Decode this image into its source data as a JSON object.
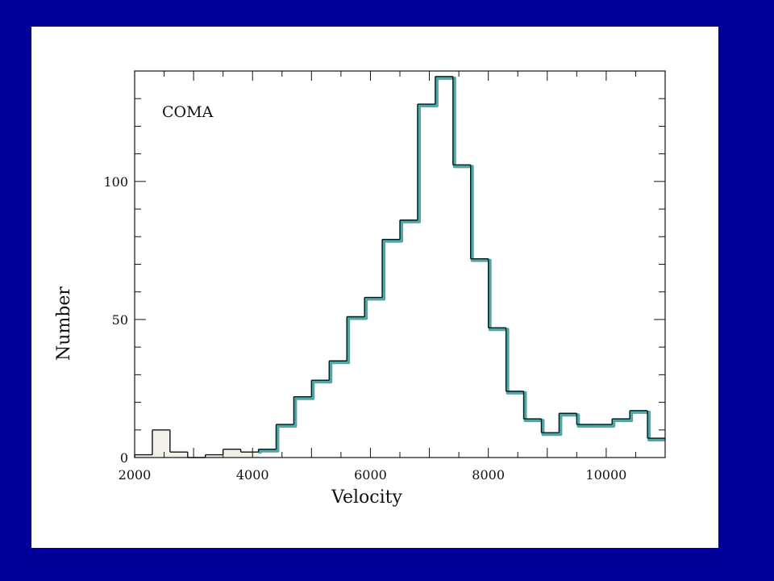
{
  "chart_data": {
    "type": "bar",
    "annotation": "COMA",
    "xlabel": "Velocity",
    "ylabel": "Number",
    "xlim": [
      2000,
      11000
    ],
    "ylim": [
      0,
      140
    ],
    "x_ticks": [
      2000,
      4000,
      6000,
      8000,
      10000
    ],
    "y_ticks": [
      0,
      50,
      100
    ],
    "bin_width": 300,
    "bins": [
      {
        "x0": 2000,
        "y": 1
      },
      {
        "x0": 2300,
        "y": 10
      },
      {
        "x0": 2600,
        "y": 2
      },
      {
        "x0": 2900,
        "y": 0
      },
      {
        "x0": 3200,
        "y": 1
      },
      {
        "x0": 3500,
        "y": 3
      },
      {
        "x0": 3800,
        "y": 2
      },
      {
        "x0": 4100,
        "y": 3
      },
      {
        "x0": 4400,
        "y": 12
      },
      {
        "x0": 4700,
        "y": 22
      },
      {
        "x0": 5000,
        "y": 28
      },
      {
        "x0": 5300,
        "y": 35
      },
      {
        "x0": 5600,
        "y": 51
      },
      {
        "x0": 5900,
        "y": 58
      },
      {
        "x0": 6200,
        "y": 79
      },
      {
        "x0": 6500,
        "y": 86
      },
      {
        "x0": 6800,
        "y": 128
      },
      {
        "x0": 7100,
        "y": 138
      },
      {
        "x0": 7400,
        "y": 106
      },
      {
        "x0": 7700,
        "y": 72
      },
      {
        "x0": 8000,
        "y": 47
      },
      {
        "x0": 8300,
        "y": 24
      },
      {
        "x0": 8600,
        "y": 14
      },
      {
        "x0": 8900,
        "y": 9
      },
      {
        "x0": 9200,
        "y": 16
      },
      {
        "x0": 9500,
        "y": 12
      },
      {
        "x0": 9800,
        "y": 12
      },
      {
        "x0": 10100,
        "y": 14
      },
      {
        "x0": 10400,
        "y": 17
      },
      {
        "x0": 10700,
        "y": 7
      }
    ],
    "overlay_start": 4100,
    "colors": {
      "background": "#000099",
      "panel": "#ffffff",
      "outline": "#111111",
      "overlay": "#2a9a9a",
      "low_bin_fill": "#f1f1ea"
    }
  }
}
